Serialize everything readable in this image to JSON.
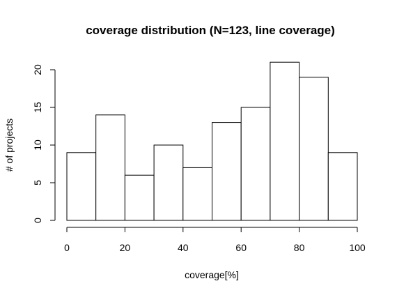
{
  "chart_data": {
    "type": "bar",
    "subtype": "histogram",
    "title": "coverage distribution (N=123, line coverage)",
    "xlabel": "coverage[%]",
    "ylabel": "# of projects",
    "bins": [
      {
        "from": 0,
        "to": 10,
        "count": 9
      },
      {
        "from": 10,
        "to": 20,
        "count": 14
      },
      {
        "from": 20,
        "to": 30,
        "count": 6
      },
      {
        "from": 30,
        "to": 40,
        "count": 10
      },
      {
        "from": 40,
        "to": 50,
        "count": 7
      },
      {
        "from": 50,
        "to": 60,
        "count": 13
      },
      {
        "from": 60,
        "to": 70,
        "count": 15
      },
      {
        "from": 70,
        "to": 80,
        "count": 21
      },
      {
        "from": 80,
        "to": 90,
        "count": 19
      },
      {
        "from": 90,
        "to": 100,
        "count": 9
      }
    ],
    "xlim": [
      0,
      100
    ],
    "ylim": [
      0,
      21
    ],
    "xticks": [
      0,
      20,
      40,
      60,
      80,
      100
    ],
    "yticks": [
      0,
      5,
      10,
      15,
      20
    ],
    "grid": false,
    "colors": {
      "fill": "#ffffff",
      "stroke": "#000000"
    }
  }
}
